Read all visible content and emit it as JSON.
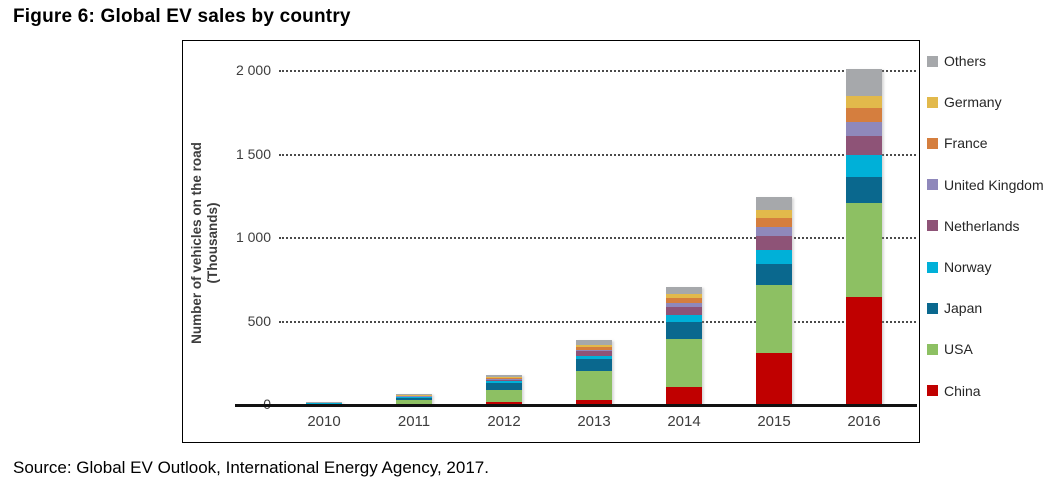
{
  "title": "Figure 6: Global EV sales by country",
  "source": "Source: Global EV Outlook, International Energy Agency, 2017.",
  "chart_data": {
    "type": "bar",
    "stacked": true,
    "title": "Figure 6: Global EV sales by country",
    "xlabel": "",
    "ylabel_line1": "Number of vehicles on the road",
    "ylabel_line2": "(Thousands)",
    "ylim": [
      0,
      2100
    ],
    "grid": "horizontal dotted at 500/1000/1500/2000",
    "legend_position": "right-outside, reverse stack order (top item = top segment)",
    "categories": [
      "2010",
      "2011",
      "2012",
      "2013",
      "2014",
      "2015",
      "2016"
    ],
    "yticks": [
      {
        "value": 0,
        "label": "0"
      },
      {
        "value": 500,
        "label": "500"
      },
      {
        "value": 1000,
        "label": "1 000"
      },
      {
        "value": 1500,
        "label": "1 500"
      },
      {
        "value": 2000,
        "label": "2 000"
      }
    ],
    "series": [
      {
        "name": "China",
        "color": "#C00000",
        "values": [
          1.9,
          6.9,
          16.9,
          32.2,
          105.4,
          312.3,
          648.8
        ]
      },
      {
        "name": "USA",
        "color": "#8DC063",
        "values": [
          3.8,
          21.5,
          74.7,
          171.4,
          290.2,
          404.1,
          563.7
        ]
      },
      {
        "name": "Japan",
        "color": "#0A688E",
        "values": [
          3.4,
          16.1,
          40.6,
          69.5,
          101.7,
          126.4,
          151.3
        ]
      },
      {
        "name": "Norway",
        "color": "#00B0D8",
        "values": [
          3.3,
          5.4,
          10.2,
          20.4,
          43.4,
          84.2,
          133.3
        ]
      },
      {
        "name": "Netherlands",
        "color": "#8E5377",
        "values": [
          0.3,
          1.1,
          6.3,
          28.7,
          43.8,
          87.5,
          112.0
        ]
      },
      {
        "name": "United Kingdom",
        "color": "#8F88BB",
        "values": [
          1.7,
          2.9,
          5.6,
          9.3,
          24.1,
          49.7,
          86.4
        ]
      },
      {
        "name": "France",
        "color": "#D57E3E",
        "values": [
          0.3,
          3.0,
          9.3,
          18.9,
          31.5,
          54.3,
          84.0
        ]
      },
      {
        "name": "Germany",
        "color": "#E2B94B",
        "values": [
          0.3,
          1.9,
          5.3,
          12.2,
          24.9,
          48.1,
          72.7
        ]
      },
      {
        "name": "Others",
        "color": "#A6A8AB",
        "values": [
          2.5,
          5.6,
          12.0,
          26.5,
          43.5,
          81.0,
          161.5
        ]
      }
    ]
  },
  "colors": {
    "frame_border": "#000000",
    "axis_line": "#111111",
    "gridline": "#4a4a4a",
    "tick_text": "#3d3d3d",
    "legend_text": "#262626",
    "background": "#ffffff"
  }
}
